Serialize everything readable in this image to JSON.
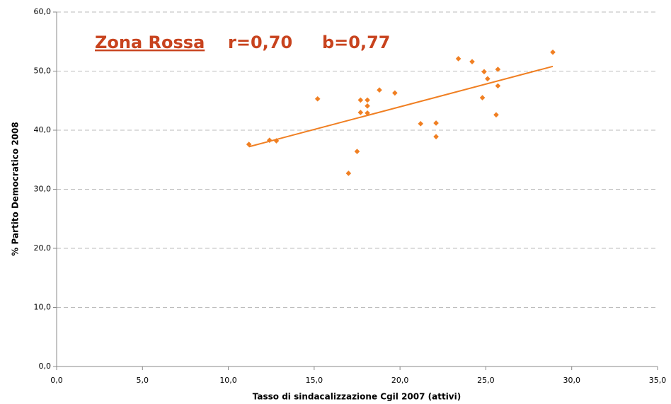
{
  "chart_data": {
    "type": "scatter",
    "annotation": {
      "title": "Zona Rossa",
      "r": "r=0,70",
      "b": "b=0,77"
    },
    "x_label": "Tasso di sindacalizzazione Cgil 2007 (attivi)",
    "y_label": "% Partito Democratico 2008",
    "color": "#f07f22",
    "x": [
      11.2,
      12.4,
      12.8,
      15.2,
      17.0,
      17.5,
      17.7,
      17.7,
      18.1,
      18.1,
      18.1,
      18.8,
      19.7,
      21.2,
      22.1,
      22.1,
      23.4,
      24.2,
      24.8,
      24.9,
      25.1,
      25.6,
      25.7,
      25.7,
      28.9
    ],
    "values": [
      37.6,
      38.3,
      38.2,
      45.3,
      32.7,
      36.4,
      45.1,
      43.0,
      45.1,
      44.1,
      42.9,
      46.8,
      46.3,
      41.1,
      41.2,
      38.9,
      52.1,
      51.6,
      45.5,
      49.9,
      48.7,
      42.6,
      47.5,
      50.3,
      53.2
    ],
    "trendline": {
      "x": [
        11.2,
        28.9
      ],
      "y": [
        37.2,
        50.8
      ],
      "color": "#f07f22"
    },
    "xlim": [
      0,
      35
    ],
    "xticks": [
      {
        "value": 0,
        "label": "0,0"
      },
      {
        "value": 5,
        "label": "5,0"
      },
      {
        "value": 10,
        "label": "10,0"
      },
      {
        "value": 15,
        "label": "15,0"
      },
      {
        "value": 20,
        "label": "20,0"
      },
      {
        "value": 25,
        "label": "25,0"
      },
      {
        "value": 30,
        "label": "30,0"
      },
      {
        "value": 35,
        "label": "35,0"
      }
    ],
    "ylim": [
      0,
      60
    ],
    "yticks": [
      {
        "value": 0,
        "label": "0,0"
      },
      {
        "value": 10,
        "label": "10,0"
      },
      {
        "value": 20,
        "label": "20,0"
      },
      {
        "value": 30,
        "label": "30,0"
      },
      {
        "value": 40,
        "label": "40,0"
      },
      {
        "value": 50,
        "label": "50,0"
      },
      {
        "value": 60,
        "label": "60,0"
      }
    ],
    "grid": true
  }
}
